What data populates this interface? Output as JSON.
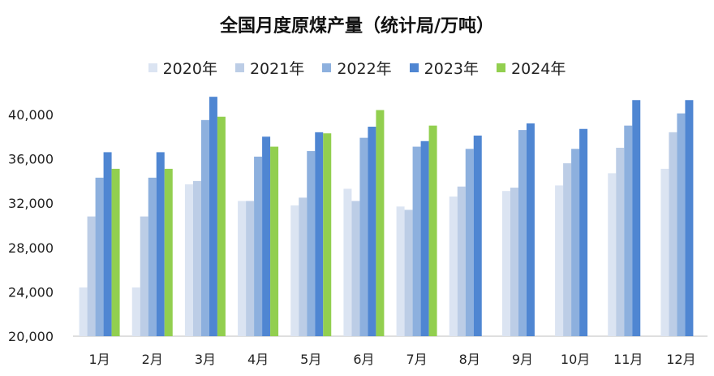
{
  "chart_data": {
    "type": "bar",
    "title": "全国月度原煤产量（统计局/万吨）",
    "categories": [
      "1月",
      "2月",
      "3月",
      "4月",
      "5月",
      "6月",
      "7月",
      "8月",
      "9月",
      "10月",
      "11月",
      "12月"
    ],
    "ylim": [
      20000,
      40000
    ],
    "yticks": [
      20000,
      24000,
      28000,
      32000,
      36000,
      40000
    ],
    "ytick_labels": [
      "20,000",
      "24,000",
      "28,000",
      "32,000",
      "36,000",
      "40,000"
    ],
    "grid": false,
    "legend_position": "top",
    "series": [
      {
        "name": "2020年",
        "color": "#dbe4f2",
        "values": [
          24400,
          24400,
          33700,
          32200,
          31800,
          33300,
          31700,
          32600,
          33100,
          33600,
          34700,
          35100
        ]
      },
      {
        "name": "2021年",
        "color": "#bccde6",
        "values": [
          30800,
          30800,
          34000,
          32200,
          32500,
          32200,
          31400,
          33500,
          33400,
          35600,
          37000,
          38400
        ]
      },
      {
        "name": "2022年",
        "color": "#8db0de",
        "values": [
          34300,
          34300,
          39500,
          36200,
          36700,
          37900,
          37100,
          36900,
          38600,
          36900,
          39000,
          40100
        ]
      },
      {
        "name": "2023年",
        "color": "#4f86d2",
        "values": [
          36600,
          36600,
          41600,
          38000,
          38400,
          38900,
          37600,
          38100,
          39200,
          38700,
          41300,
          41300
        ]
      },
      {
        "name": "2024年",
        "color": "#92cf4f",
        "values": [
          35100,
          35100,
          39800,
          37100,
          38300,
          40400,
          39000,
          null,
          null,
          null,
          null,
          null
        ]
      }
    ]
  }
}
